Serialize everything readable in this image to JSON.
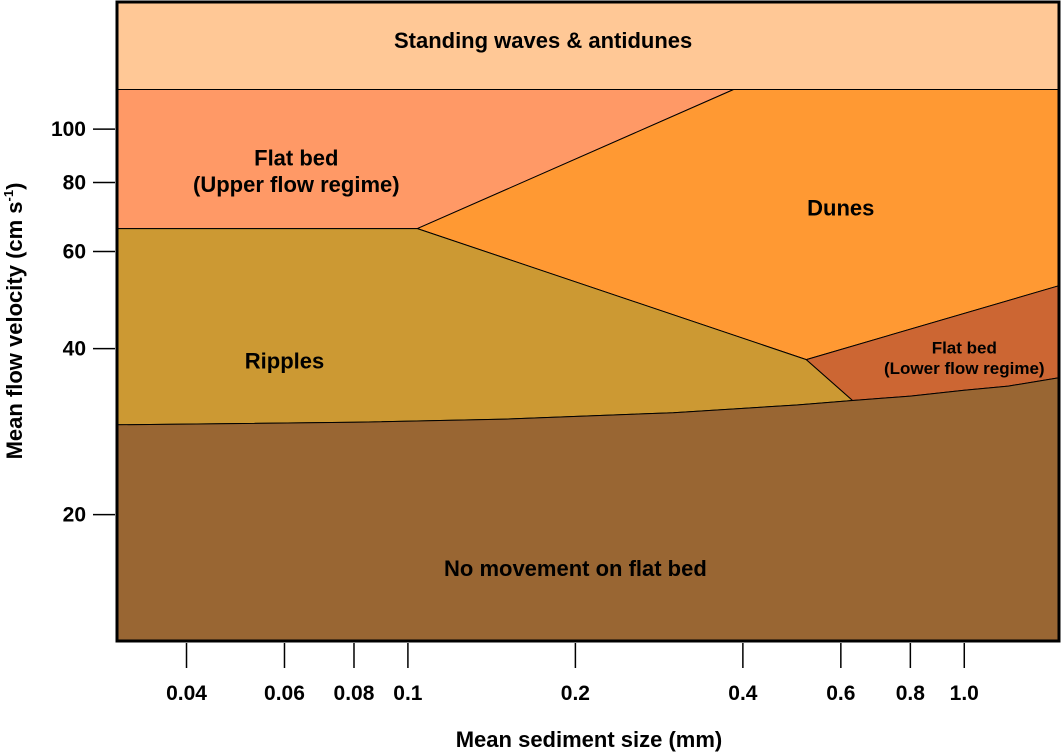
{
  "chart_data": {
    "type": "area",
    "title": "",
    "xlabel": "Mean sediment size (mm)",
    "ylabel": "Mean flow velocity (cm s",
    "ylabel_sup": "-1",
    "ylabel_suffix": ")",
    "x_scale": "log",
    "y_scale": "log",
    "xlim": [
      0.03,
      1.48
    ],
    "ylim": [
      11.8,
      170
    ],
    "x_ticks": [
      {
        "value": 0.04,
        "label": "0.04"
      },
      {
        "value": 0.06,
        "label": "0.06"
      },
      {
        "value": 0.08,
        "label": "0.08"
      },
      {
        "value": 0.1,
        "label": "0.1"
      },
      {
        "value": 0.2,
        "label": "0.2"
      },
      {
        "value": 0.4,
        "label": "0.4"
      },
      {
        "value": 0.6,
        "label": "0.6"
      },
      {
        "value": 0.8,
        "label": "0.8"
      },
      {
        "value": 1.0,
        "label": "1.0"
      }
    ],
    "y_ticks": [
      {
        "value": 20,
        "label": "20"
      },
      {
        "value": 40,
        "label": "40"
      },
      {
        "value": 60,
        "label": "60"
      },
      {
        "value": 80,
        "label": "80"
      },
      {
        "value": 100,
        "label": "100"
      }
    ],
    "regions": [
      {
        "id": "standing-waves",
        "label_lines": [
          "Standing waves & antidunes"
        ],
        "color": "#FFC896",
        "label_at": [
          0.175,
          145
        ],
        "font_size": 22,
        "polygon": [
          [
            0.03,
            170
          ],
          [
            1.48,
            170
          ],
          [
            1.48,
            118
          ],
          [
            0.03,
            118
          ]
        ]
      },
      {
        "id": "flat-bed-upper",
        "label_lines": [
          "Flat bed",
          "(Upper flow regime)"
        ],
        "color": "#FF9966",
        "label_at": [
          0.063,
          84
        ],
        "font_size": 22,
        "polygon": [
          [
            0.03,
            118
          ],
          [
            0.385,
            118
          ],
          [
            0.104,
            66
          ],
          [
            0.03,
            66
          ]
        ]
      },
      {
        "id": "dunes",
        "label_lines": [
          "Dunes"
        ],
        "color": "#FF9933",
        "label_at": [
          0.6,
          72
        ],
        "font_size": 22,
        "polygon": [
          [
            0.385,
            118
          ],
          [
            1.48,
            118
          ],
          [
            1.48,
            52
          ],
          [
            0.52,
            38.2
          ],
          [
            0.104,
            66
          ]
        ]
      },
      {
        "id": "ripples",
        "label_lines": [
          "Ripples"
        ],
        "color": "#CC9933",
        "label_at": [
          0.06,
          38
        ],
        "font_size": 22,
        "polygon": [
          [
            0.03,
            66
          ],
          [
            0.104,
            66
          ],
          [
            0.52,
            38.2
          ],
          [
            0.63,
            32.2
          ],
          [
            0.5,
            31.6
          ],
          [
            0.3,
            30.6
          ],
          [
            0.15,
            29.8
          ],
          [
            0.08,
            29.4
          ],
          [
            0.03,
            29.1
          ]
        ]
      },
      {
        "id": "flat-bed-lower",
        "label_lines": [
          "Flat bed",
          "(Lower flow regime)"
        ],
        "color": "#CC6633",
        "label_at": [
          1.0,
          38.5
        ],
        "font_size": 17,
        "polygon": [
          [
            0.52,
            38.2
          ],
          [
            1.48,
            52
          ],
          [
            1.48,
            35.4
          ],
          [
            1.2,
            34.2
          ],
          [
            1.0,
            33.6
          ],
          [
            0.8,
            32.8
          ],
          [
            0.63,
            32.2
          ]
        ]
      },
      {
        "id": "no-movement",
        "label_lines": [
          "No movement on flat bed"
        ],
        "color": "#996633",
        "label_at": [
          0.2,
          16
        ],
        "font_size": 22,
        "polygon": [
          [
            0.03,
            29.1
          ],
          [
            0.08,
            29.4
          ],
          [
            0.15,
            29.8
          ],
          [
            0.3,
            30.6
          ],
          [
            0.5,
            31.6
          ],
          [
            0.63,
            32.2
          ],
          [
            0.8,
            32.8
          ],
          [
            1.0,
            33.6
          ],
          [
            1.2,
            34.2
          ],
          [
            1.48,
            35.4
          ],
          [
            1.48,
            11.8
          ],
          [
            0.03,
            11.8
          ]
        ]
      }
    ],
    "boundary_color": "#000000"
  }
}
